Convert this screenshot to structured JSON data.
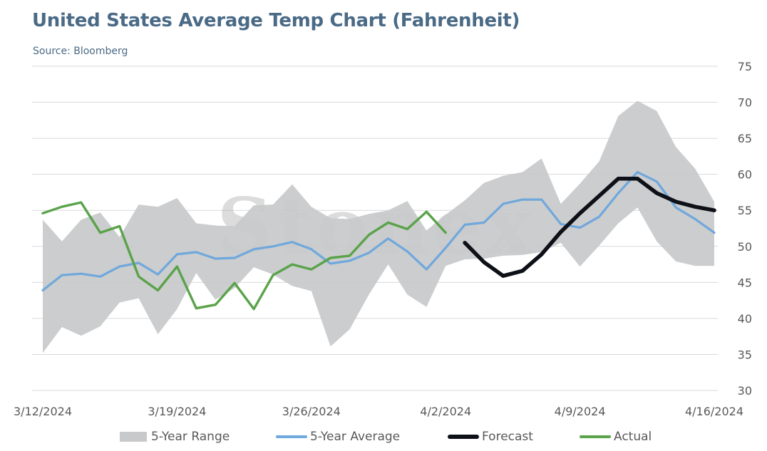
{
  "title": "United States Average Temp Chart (Fahrenheit)",
  "source": "Source: Bloomberg",
  "watermark": "Stonex",
  "colors": {
    "range": "#c8c9ca",
    "average": "#6fa8dc",
    "forecast": "#0d1117",
    "actual": "#5aa34a",
    "title": "#4a6a86",
    "grid": "#d9d9d9",
    "axis_text": "#595959"
  },
  "legend": {
    "range": "5-Year Range",
    "average": "5-Year Average",
    "forecast": "Forecast",
    "actual": "Actual"
  },
  "chart_data": {
    "type": "line",
    "title": "United States Average Temp Chart (Fahrenheit)",
    "ylim": [
      30,
      75
    ],
    "y_ticks": [
      30,
      35,
      40,
      45,
      50,
      55,
      60,
      65,
      70,
      75
    ],
    "y_axis_position": "right",
    "x_tick_labels": [
      "3/12/2024",
      "3/19/2024",
      "3/26/2024",
      "4/2/2024",
      "4/9/2024",
      "4/16/2024"
    ],
    "grid": true,
    "legend_position": "bottom",
    "x_dates": [
      "3/12/2024",
      "3/13/2024",
      "3/14/2024",
      "3/15/2024",
      "3/16/2024",
      "3/17/2024",
      "3/18/2024",
      "3/19/2024",
      "3/20/2024",
      "3/21/2024",
      "3/22/2024",
      "3/23/2024",
      "3/24/2024",
      "3/25/2024",
      "3/26/2024",
      "3/27/2024",
      "3/28/2024",
      "3/29/2024",
      "3/30/2024",
      "3/31/2024",
      "4/1/2024",
      "4/2/2024",
      "4/3/2024",
      "4/4/2024",
      "4/5/2024",
      "4/6/2024",
      "4/7/2024",
      "4/8/2024",
      "4/9/2024",
      "4/10/2024",
      "4/11/2024",
      "4/12/2024",
      "4/13/2024",
      "4/14/2024",
      "4/15/2024",
      "4/16/2024"
    ],
    "series": [
      {
        "name": "5-Year Range",
        "kind": "area",
        "low": [
          35.2,
          38.8,
          37.6,
          38.9,
          42.2,
          42.8,
          37.8,
          41.3,
          46.3,
          42.6,
          44.2,
          47.1,
          46.1,
          44.5,
          43.8,
          36.1,
          38.5,
          43.3,
          47.5,
          43.3,
          41.6,
          47.3,
          48.2,
          48.3,
          48.7,
          48.8,
          49.2,
          50.5,
          47.2,
          50.1,
          53.2,
          55.4,
          50.7,
          47.9,
          47.3,
          47.3
        ],
        "high": [
          53.7,
          50.7,
          53.7,
          54.7,
          51.3,
          55.8,
          55.5,
          56.7,
          53.2,
          52.9,
          52.8,
          55.7,
          55.8,
          58.6,
          55.5,
          53.9,
          53.8,
          54.5,
          55.0,
          56.3,
          52.2,
          54.4,
          56.4,
          58.8,
          59.8,
          60.3,
          62.2,
          55.9,
          58.7,
          61.8,
          68.1,
          70.2,
          68.8,
          63.8,
          60.8,
          56.2
        ]
      },
      {
        "name": "5-Year Average",
        "kind": "line",
        "values": [
          43.9,
          46.0,
          46.2,
          45.8,
          47.2,
          47.7,
          46.1,
          48.9,
          49.2,
          48.3,
          48.4,
          49.6,
          50.0,
          50.6,
          49.6,
          47.6,
          48.0,
          49.1,
          51.1,
          49.3,
          46.8,
          49.8,
          53.0,
          53.3,
          55.9,
          56.5,
          56.5,
          53.1,
          52.6,
          54.1,
          57.4,
          60.3,
          59.0,
          55.4,
          53.8,
          51.9
        ]
      },
      {
        "name": "Forecast",
        "kind": "line",
        "values": [
          null,
          null,
          null,
          null,
          null,
          null,
          null,
          null,
          null,
          null,
          null,
          null,
          null,
          null,
          null,
          null,
          null,
          null,
          null,
          null,
          null,
          null,
          50.5,
          47.8,
          45.9,
          46.6,
          48.9,
          52.0,
          54.6,
          57.0,
          59.4,
          59.4,
          57.4,
          56.2,
          55.5,
          55.0
        ]
      },
      {
        "name": "Actual",
        "kind": "line",
        "values": [
          54.6,
          55.5,
          56.1,
          51.9,
          52.8,
          45.8,
          43.9,
          47.2,
          41.4,
          41.9,
          44.9,
          41.3,
          46.0,
          47.5,
          46.8,
          48.4,
          48.7,
          51.6,
          53.3,
          52.4,
          54.8,
          51.9,
          null,
          null,
          null,
          null,
          null,
          null,
          null,
          null,
          null,
          null,
          null,
          null,
          null,
          null
        ]
      }
    ]
  }
}
